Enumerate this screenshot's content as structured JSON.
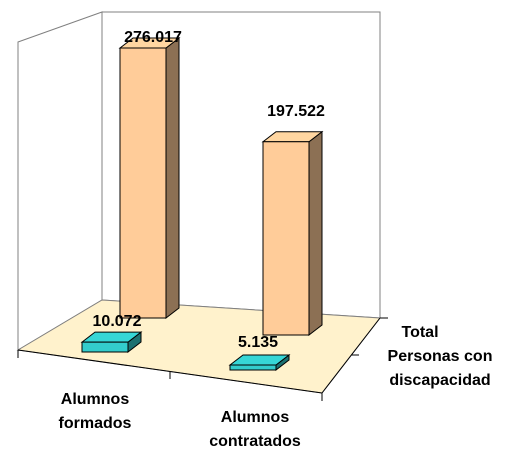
{
  "chart_data": {
    "type": "bar3d",
    "categories": [
      "Alumnos formados",
      "Alumnos contratados"
    ],
    "series": [
      {
        "name": "Personas con discapacidad",
        "color": "#33cccc",
        "values": [
          10072,
          5135
        ],
        "value_labels": [
          "10.072",
          "5.135"
        ]
      },
      {
        "name": "Total",
        "color": "#ffcc99",
        "values": [
          276017,
          197522
        ],
        "value_labels": [
          "276.017",
          "197.522"
        ]
      }
    ]
  }
}
